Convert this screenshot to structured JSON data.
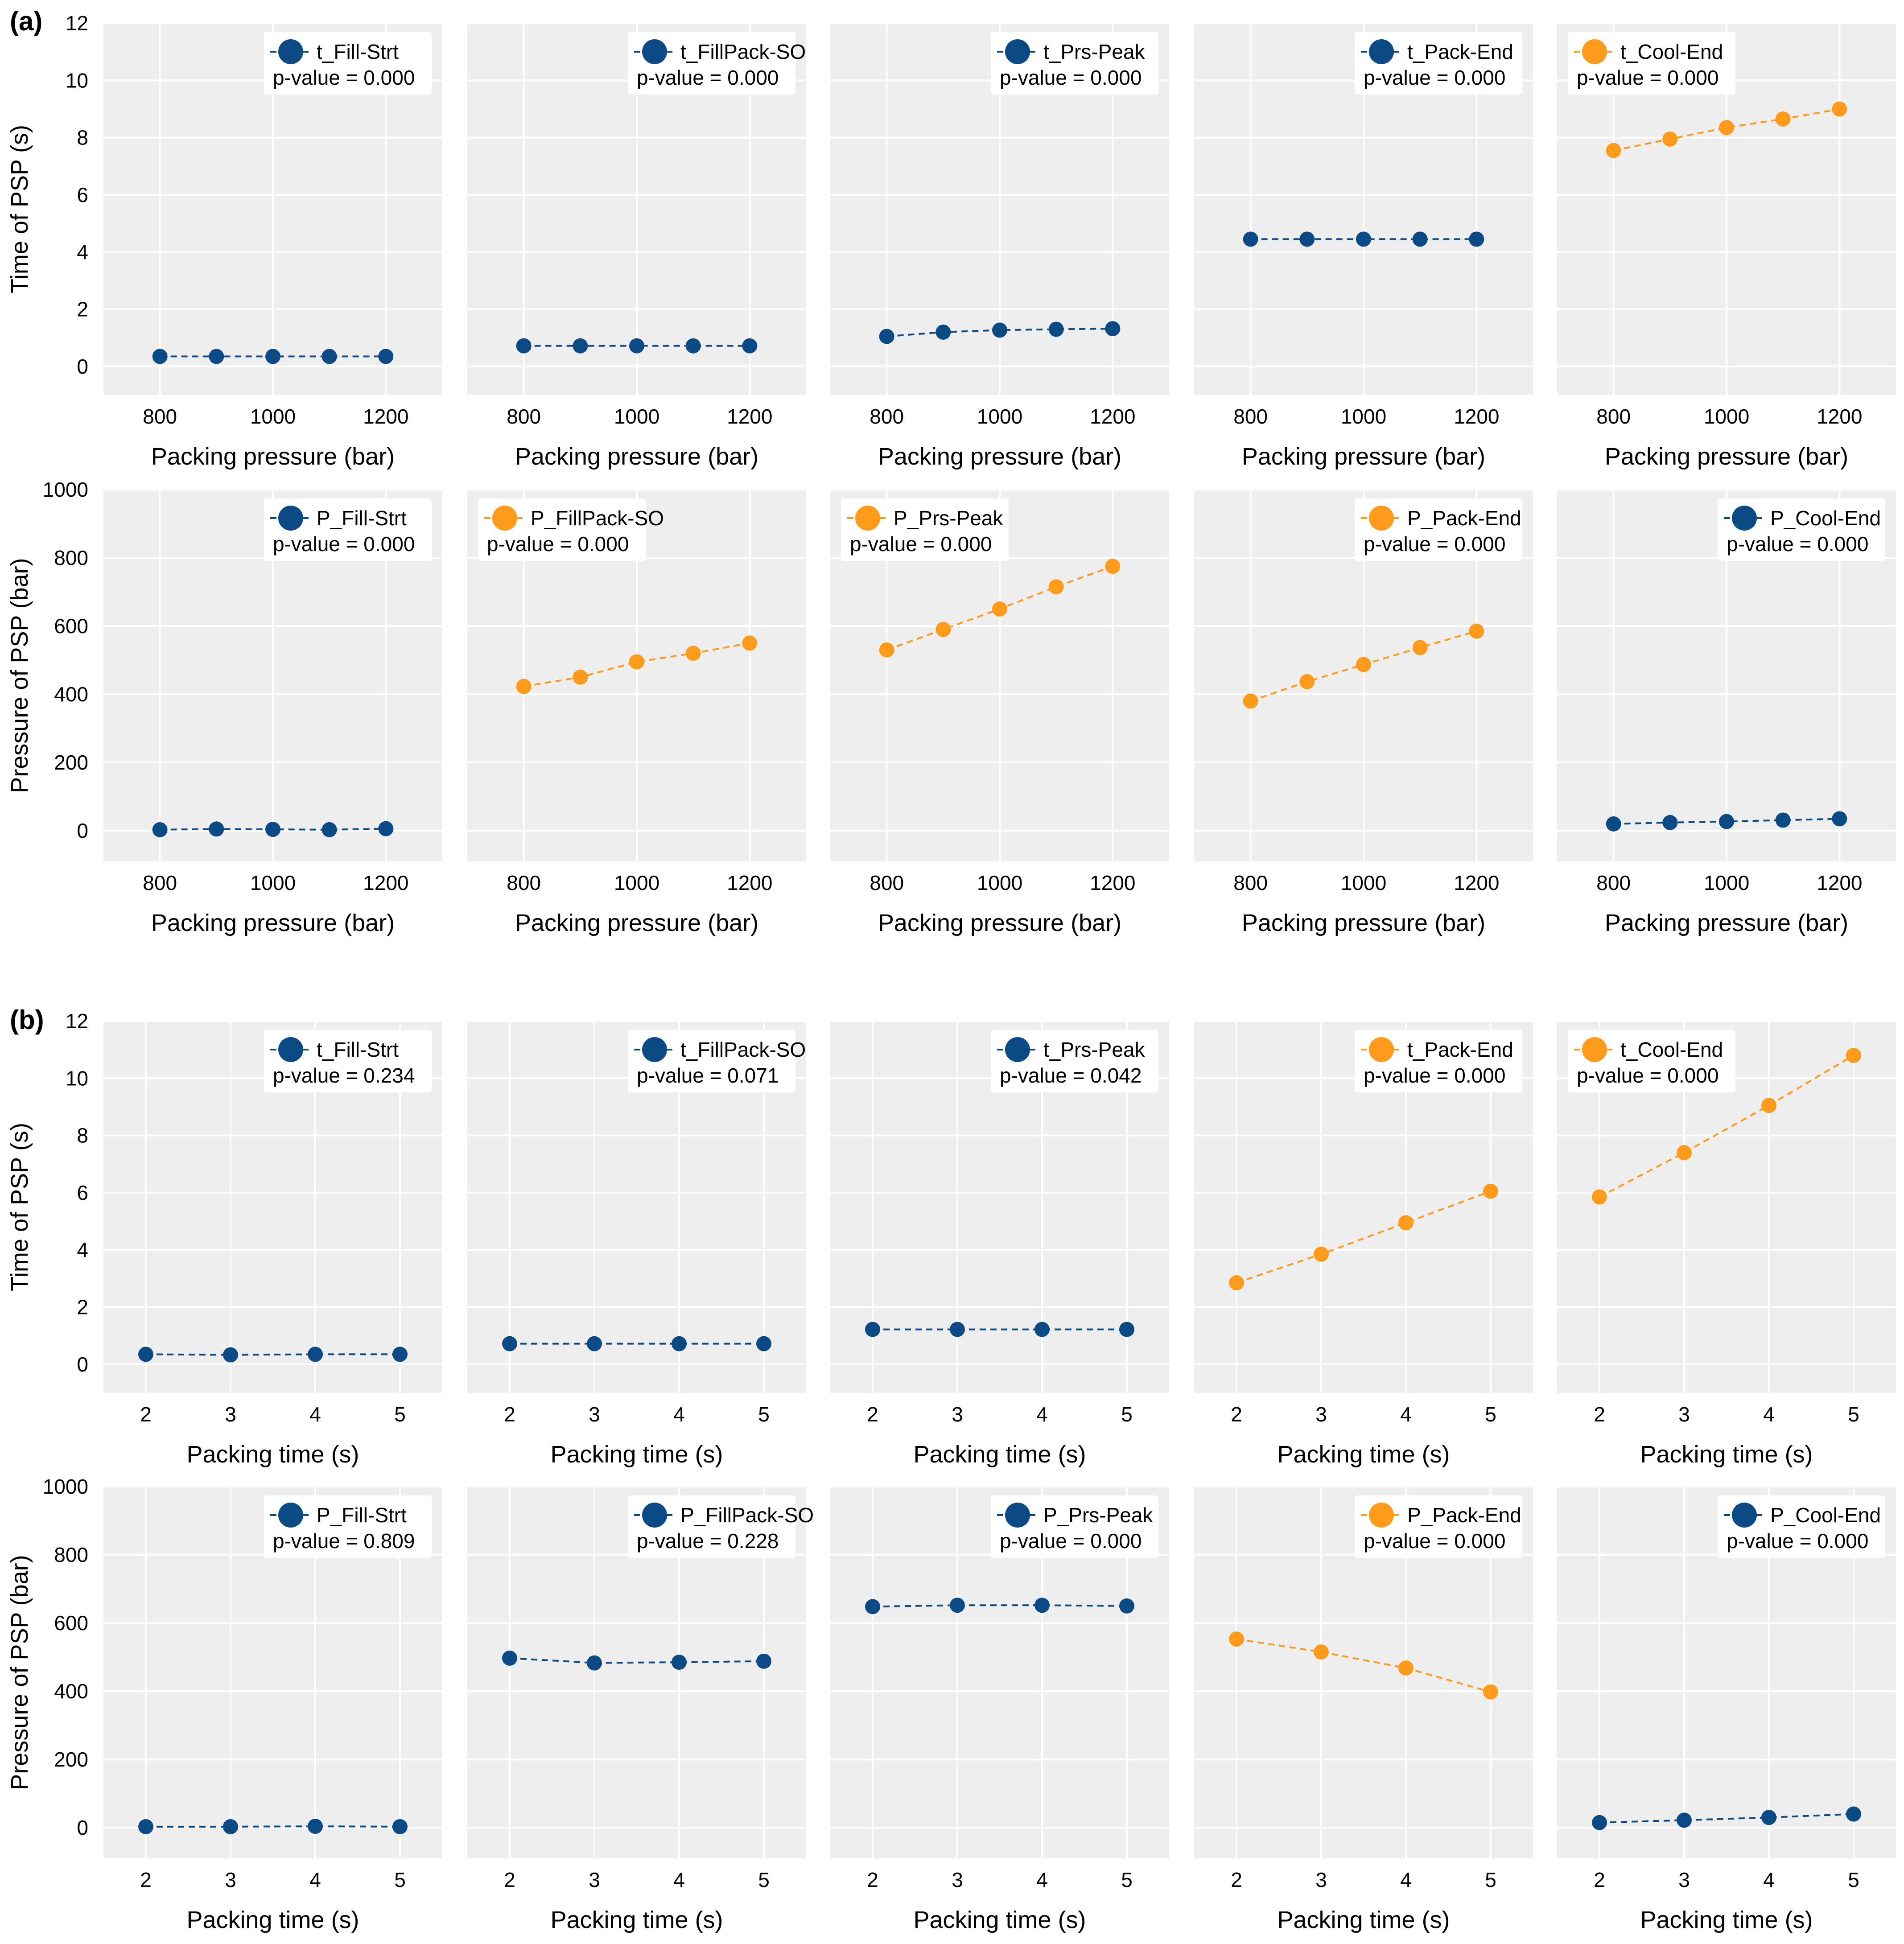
{
  "colors": {
    "blue": "#0b4a85",
    "orange": "#ff9a1a",
    "panel_bg": "#eeeeee",
    "grid": "#ffffff"
  },
  "panel_labels": [
    "(a)",
    "(b)"
  ],
  "chart_data": [
    {
      "type": "line",
      "section": "(a)",
      "row": 0,
      "col": 0,
      "series_name": "t_Fill-Strt",
      "pvalue": "p-value = 0.000",
      "color": "blue",
      "x": [
        800,
        900,
        1000,
        1100,
        1200
      ],
      "y": [
        0.35,
        0.35,
        0.35,
        0.35,
        0.35
      ],
      "xlim": [
        700,
        1300
      ],
      "ylim": [
        -1,
        12
      ],
      "xticks": [
        800,
        1000,
        1200
      ],
      "yticks": [
        0,
        2,
        4,
        6,
        8,
        10,
        12
      ],
      "xlabel": "Packing pressure (bar)",
      "ylabel": "Time of PSP (s)",
      "legend": "top-right"
    },
    {
      "type": "line",
      "section": "(a)",
      "row": 0,
      "col": 1,
      "series_name": "t_FillPack-SO",
      "pvalue": "p-value = 0.000",
      "color": "blue",
      "x": [
        800,
        900,
        1000,
        1100,
        1200
      ],
      "y": [
        0.72,
        0.72,
        0.72,
        0.72,
        0.72
      ],
      "xlim": [
        700,
        1300
      ],
      "ylim": [
        -1,
        12
      ],
      "xticks": [
        800,
        1000,
        1200
      ],
      "yticks": [
        0,
        2,
        4,
        6,
        8,
        10,
        12
      ],
      "xlabel": "Packing pressure (bar)",
      "ylabel": "",
      "legend": "top-right"
    },
    {
      "type": "line",
      "section": "(a)",
      "row": 0,
      "col": 2,
      "series_name": "t_Prs-Peak",
      "pvalue": "p-value = 0.000",
      "color": "blue",
      "x": [
        800,
        900,
        1000,
        1100,
        1200
      ],
      "y": [
        1.05,
        1.2,
        1.27,
        1.3,
        1.32
      ],
      "xlim": [
        700,
        1300
      ],
      "ylim": [
        -1,
        12
      ],
      "xticks": [
        800,
        1000,
        1200
      ],
      "yticks": [
        0,
        2,
        4,
        6,
        8,
        10,
        12
      ],
      "xlabel": "Packing pressure (bar)",
      "ylabel": "",
      "legend": "top-right"
    },
    {
      "type": "line",
      "section": "(a)",
      "row": 0,
      "col": 3,
      "series_name": "t_Pack-End",
      "pvalue": "p-value = 0.000",
      "color": "blue",
      "x": [
        800,
        900,
        1000,
        1100,
        1200
      ],
      "y": [
        4.45,
        4.45,
        4.45,
        4.45,
        4.45
      ],
      "xlim": [
        700,
        1300
      ],
      "ylim": [
        -1,
        12
      ],
      "xticks": [
        800,
        1000,
        1200
      ],
      "yticks": [
        0,
        2,
        4,
        6,
        8,
        10,
        12
      ],
      "xlabel": "Packing pressure (bar)",
      "ylabel": "",
      "legend": "top-right"
    },
    {
      "type": "line",
      "section": "(a)",
      "row": 0,
      "col": 4,
      "series_name": "t_Cool-End",
      "pvalue": "p-value = 0.000",
      "color": "orange",
      "x": [
        800,
        900,
        1000,
        1100,
        1200
      ],
      "y": [
        7.55,
        7.95,
        8.35,
        8.65,
        9.0
      ],
      "xlim": [
        700,
        1300
      ],
      "ylim": [
        -1,
        12
      ],
      "xticks": [
        800,
        1000,
        1200
      ],
      "yticks": [
        0,
        2,
        4,
        6,
        8,
        10,
        12
      ],
      "xlabel": "Packing pressure (bar)",
      "ylabel": "",
      "legend": "top-left"
    },
    {
      "type": "line",
      "section": "(a)",
      "row": 1,
      "col": 0,
      "series_name": "P_Fill-Strt",
      "pvalue": "p-value = 0.000",
      "color": "blue",
      "x": [
        800,
        900,
        1000,
        1100,
        1200
      ],
      "y": [
        3,
        5,
        4,
        3,
        6
      ],
      "xlim": [
        700,
        1300
      ],
      "ylim": [
        -90,
        1000
      ],
      "xticks": [
        800,
        1000,
        1200
      ],
      "yticks": [
        0,
        200,
        400,
        600,
        800,
        1000
      ],
      "xlabel": "Packing pressure (bar)",
      "ylabel": "Pressure of PSP (bar)",
      "legend": "top-right"
    },
    {
      "type": "line",
      "section": "(a)",
      "row": 1,
      "col": 1,
      "series_name": "P_FillPack-SO",
      "pvalue": "p-value = 0.000",
      "color": "orange",
      "x": [
        800,
        900,
        1000,
        1100,
        1200
      ],
      "y": [
        423,
        450,
        495,
        520,
        550
      ],
      "xlim": [
        700,
        1300
      ],
      "ylim": [
        -90,
        1000
      ],
      "xticks": [
        800,
        1000,
        1200
      ],
      "yticks": [
        0,
        200,
        400,
        600,
        800,
        1000
      ],
      "xlabel": "Packing pressure (bar)",
      "ylabel": "",
      "legend": "top-left"
    },
    {
      "type": "line",
      "section": "(a)",
      "row": 1,
      "col": 2,
      "series_name": "P_Prs-Peak",
      "pvalue": "p-value = 0.000",
      "color": "orange",
      "x": [
        800,
        900,
        1000,
        1100,
        1200
      ],
      "y": [
        530,
        590,
        650,
        715,
        775
      ],
      "xlim": [
        700,
        1300
      ],
      "ylim": [
        -90,
        1000
      ],
      "xticks": [
        800,
        1000,
        1200
      ],
      "yticks": [
        0,
        200,
        400,
        600,
        800,
        1000
      ],
      "xlabel": "Packing pressure (bar)",
      "ylabel": "",
      "legend": "top-left"
    },
    {
      "type": "line",
      "section": "(a)",
      "row": 1,
      "col": 3,
      "series_name": "P_Pack-End",
      "pvalue": "p-value = 0.000",
      "color": "orange",
      "x": [
        800,
        900,
        1000,
        1100,
        1200
      ],
      "y": [
        380,
        437,
        487,
        537,
        585
      ],
      "xlim": [
        700,
        1300
      ],
      "ylim": [
        -90,
        1000
      ],
      "xticks": [
        800,
        1000,
        1200
      ],
      "yticks": [
        0,
        200,
        400,
        600,
        800,
        1000
      ],
      "xlabel": "Packing pressure (bar)",
      "ylabel": "",
      "legend": "top-right"
    },
    {
      "type": "line",
      "section": "(a)",
      "row": 1,
      "col": 4,
      "series_name": "P_Cool-End",
      "pvalue": "p-value = 0.000",
      "color": "blue",
      "x": [
        800,
        900,
        1000,
        1100,
        1200
      ],
      "y": [
        20,
        24,
        27,
        31,
        35
      ],
      "xlim": [
        700,
        1300
      ],
      "ylim": [
        -90,
        1000
      ],
      "xticks": [
        800,
        1000,
        1200
      ],
      "yticks": [
        0,
        200,
        400,
        600,
        800,
        1000
      ],
      "xlabel": "Packing pressure (bar)",
      "ylabel": "",
      "legend": "top-right"
    },
    {
      "type": "line",
      "section": "(b)",
      "row": 2,
      "col": 0,
      "series_name": "t_Fill-Strt",
      "pvalue": "p-value = 0.234",
      "color": "blue",
      "x": [
        2,
        3,
        4,
        5
      ],
      "y": [
        0.35,
        0.33,
        0.35,
        0.35
      ],
      "xlim": [
        1.5,
        5.5
      ],
      "ylim": [
        -1,
        12
      ],
      "xticks": [
        2,
        3,
        4,
        5
      ],
      "yticks": [
        0,
        2,
        4,
        6,
        8,
        10,
        12
      ],
      "xlabel": "Packing time (s)",
      "ylabel": "Time of PSP (s)",
      "legend": "top-right"
    },
    {
      "type": "line",
      "section": "(b)",
      "row": 2,
      "col": 1,
      "series_name": "t_FillPack-SO",
      "pvalue": "p-value = 0.071",
      "color": "blue",
      "x": [
        2,
        3,
        4,
        5
      ],
      "y": [
        0.72,
        0.72,
        0.72,
        0.72
      ],
      "xlim": [
        1.5,
        5.5
      ],
      "ylim": [
        -1,
        12
      ],
      "xticks": [
        2,
        3,
        4,
        5
      ],
      "yticks": [
        0,
        2,
        4,
        6,
        8,
        10,
        12
      ],
      "xlabel": "Packing time (s)",
      "ylabel": "",
      "legend": "top-right"
    },
    {
      "type": "line",
      "section": "(b)",
      "row": 2,
      "col": 2,
      "series_name": "t_Prs-Peak",
      "pvalue": "p-value = 0.042",
      "color": "blue",
      "x": [
        2,
        3,
        4,
        5
      ],
      "y": [
        1.22,
        1.22,
        1.22,
        1.22
      ],
      "xlim": [
        1.5,
        5.5
      ],
      "ylim": [
        -1,
        12
      ],
      "xticks": [
        2,
        3,
        4,
        5
      ],
      "yticks": [
        0,
        2,
        4,
        6,
        8,
        10,
        12
      ],
      "xlabel": "Packing time (s)",
      "ylabel": "",
      "legend": "top-right"
    },
    {
      "type": "line",
      "section": "(b)",
      "row": 2,
      "col": 3,
      "series_name": "t_Pack-End",
      "pvalue": "p-value = 0.000",
      "color": "orange",
      "x": [
        2,
        3,
        4,
        5
      ],
      "y": [
        2.85,
        3.85,
        4.95,
        6.05
      ],
      "xlim": [
        1.5,
        5.5
      ],
      "ylim": [
        -1,
        12
      ],
      "xticks": [
        2,
        3,
        4,
        5
      ],
      "yticks": [
        0,
        2,
        4,
        6,
        8,
        10,
        12
      ],
      "xlabel": "Packing time (s)",
      "ylabel": "",
      "legend": "top-right"
    },
    {
      "type": "line",
      "section": "(b)",
      "row": 2,
      "col": 4,
      "series_name": "t_Cool-End",
      "pvalue": "p-value = 0.000",
      "color": "orange",
      "x": [
        2,
        3,
        4,
        5
      ],
      "y": [
        5.85,
        7.4,
        9.05,
        10.8
      ],
      "xlim": [
        1.5,
        5.5
      ],
      "ylim": [
        -1,
        12
      ],
      "xticks": [
        2,
        3,
        4,
        5
      ],
      "yticks": [
        0,
        2,
        4,
        6,
        8,
        10,
        12
      ],
      "xlabel": "Packing time (s)",
      "ylabel": "",
      "legend": "top-left"
    },
    {
      "type": "line",
      "section": "(b)",
      "row": 3,
      "col": 0,
      "series_name": "P_Fill-Strt",
      "pvalue": "p-value = 0.809",
      "color": "blue",
      "x": [
        2,
        3,
        4,
        5
      ],
      "y": [
        3,
        3,
        4,
        3
      ],
      "xlim": [
        1.5,
        5.5
      ],
      "ylim": [
        -90,
        1000
      ],
      "xticks": [
        2,
        3,
        4,
        5
      ],
      "yticks": [
        0,
        200,
        400,
        600,
        800,
        1000
      ],
      "xlabel": "Packing time (s)",
      "ylabel": "Pressure of PSP (bar)",
      "legend": "top-right"
    },
    {
      "type": "line",
      "section": "(b)",
      "row": 3,
      "col": 1,
      "series_name": "P_FillPack-SO",
      "pvalue": "p-value = 0.228",
      "color": "blue",
      "x": [
        2,
        3,
        4,
        5
      ],
      "y": [
        497,
        483,
        485,
        488
      ],
      "xlim": [
        1.5,
        5.5
      ],
      "ylim": [
        -90,
        1000
      ],
      "xticks": [
        2,
        3,
        4,
        5
      ],
      "yticks": [
        0,
        200,
        400,
        600,
        800,
        1000
      ],
      "xlabel": "Packing time (s)",
      "ylabel": "",
      "legend": "top-right"
    },
    {
      "type": "line",
      "section": "(b)",
      "row": 3,
      "col": 2,
      "series_name": "P_Prs-Peak",
      "pvalue": "p-value = 0.000",
      "color": "blue",
      "x": [
        2,
        3,
        4,
        5
      ],
      "y": [
        648,
        652,
        652,
        650
      ],
      "xlim": [
        1.5,
        5.5
      ],
      "ylim": [
        -90,
        1000
      ],
      "xticks": [
        2,
        3,
        4,
        5
      ],
      "yticks": [
        0,
        200,
        400,
        600,
        800,
        1000
      ],
      "xlabel": "Packing time (s)",
      "ylabel": "",
      "legend": "top-right"
    },
    {
      "type": "line",
      "section": "(b)",
      "row": 3,
      "col": 3,
      "series_name": "P_Pack-End",
      "pvalue": "p-value = 0.000",
      "color": "orange",
      "x": [
        2,
        3,
        4,
        5
      ],
      "y": [
        553,
        515,
        468,
        398
      ],
      "xlim": [
        1.5,
        5.5
      ],
      "ylim": [
        -90,
        1000
      ],
      "xticks": [
        2,
        3,
        4,
        5
      ],
      "yticks": [
        0,
        200,
        400,
        600,
        800,
        1000
      ],
      "xlabel": "Packing time (s)",
      "ylabel": "",
      "legend": "top-right"
    },
    {
      "type": "line",
      "section": "(b)",
      "row": 3,
      "col": 4,
      "series_name": "P_Cool-End",
      "pvalue": "p-value = 0.000",
      "color": "blue",
      "x": [
        2,
        3,
        4,
        5
      ],
      "y": [
        15,
        22,
        30,
        40
      ],
      "xlim": [
        1.5,
        5.5
      ],
      "ylim": [
        -90,
        1000
      ],
      "xticks": [
        2,
        3,
        4,
        5
      ],
      "yticks": [
        0,
        200,
        400,
        600,
        800,
        1000
      ],
      "xlabel": "Packing time (s)",
      "ylabel": "",
      "legend": "top-right"
    }
  ]
}
